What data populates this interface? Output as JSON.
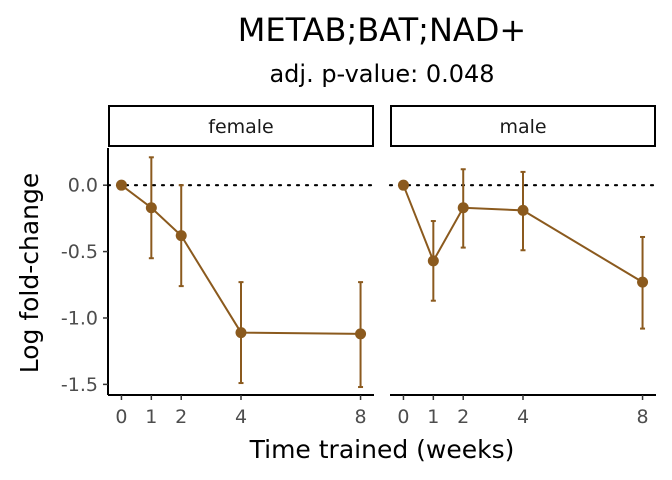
{
  "chart_data": {
    "type": "line",
    "title": "METAB;BAT;NAD+",
    "subtitle": "adj. p-value: 0.048",
    "xlabel": "Time trained (weeks)",
    "ylabel": "Log fold-change",
    "x_ticks": [
      0,
      1,
      2,
      4,
      8
    ],
    "y_ticks": [
      0.0,
      -0.5,
      -1.0,
      -1.5
    ],
    "y_tick_labels": [
      "0.0",
      "-0.5",
      "-1.0",
      "-1.5"
    ],
    "ylim": [
      -1.58,
      0.28
    ],
    "xlim": [
      -0.45,
      8.45
    ],
    "reference_line": {
      "y": 0,
      "style": "dotted"
    },
    "color": "#8B5A1E",
    "grid": false,
    "facets": [
      {
        "label": "female",
        "x": [
          0,
          1,
          2,
          4,
          8
        ],
        "y": [
          0.0,
          -0.17,
          -0.38,
          -1.11,
          -1.12
        ],
        "ymin": [
          0.0,
          -0.55,
          -0.76,
          -1.49,
          -1.52
        ],
        "ymax": [
          0.0,
          0.21,
          0.0,
          -0.73,
          -0.73
        ]
      },
      {
        "label": "male",
        "x": [
          0,
          1,
          2,
          4,
          8
        ],
        "y": [
          0.0,
          -0.57,
          -0.17,
          -0.19,
          -0.73
        ],
        "ymin": [
          0.0,
          -0.87,
          -0.47,
          -0.49,
          -1.08
        ],
        "ymax": [
          0.0,
          -0.27,
          0.12,
          0.1,
          -0.39
        ]
      }
    ]
  }
}
